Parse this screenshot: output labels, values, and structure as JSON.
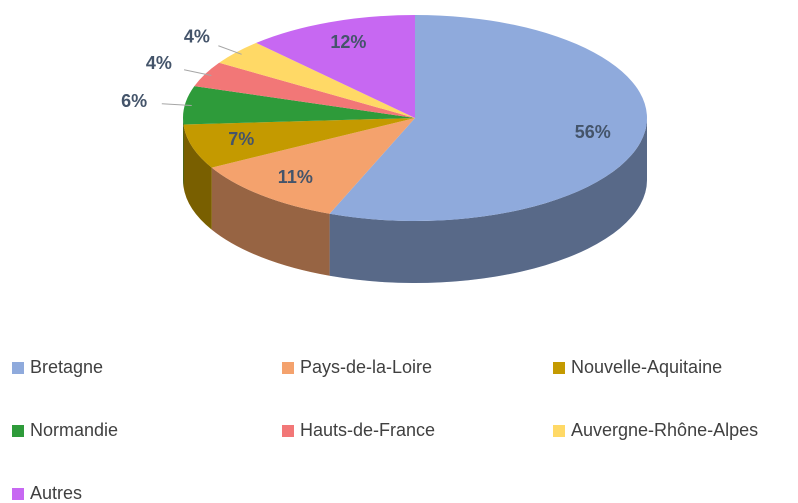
{
  "chart_data": {
    "type": "pie3d",
    "categories": [
      "Bretagne",
      "Pays-de-la-Loire",
      "Nouvelle-Aquitaine",
      "Normandie",
      "Hauts-de-France",
      "Auvergne-Rhône-Alpes",
      "Autres"
    ],
    "values": [
      56,
      11,
      7,
      6,
      4,
      4,
      12
    ],
    "value_labels": [
      "56%",
      "11%",
      "7%",
      "6%",
      "4%",
      "4%",
      "12%"
    ],
    "colors": [
      "#8faadc",
      "#f4a26d",
      "#c49a00",
      "#2e9b3a",
      "#f27777",
      "#ffd966",
      "#c768f2"
    ],
    "legend": "bottom"
  }
}
